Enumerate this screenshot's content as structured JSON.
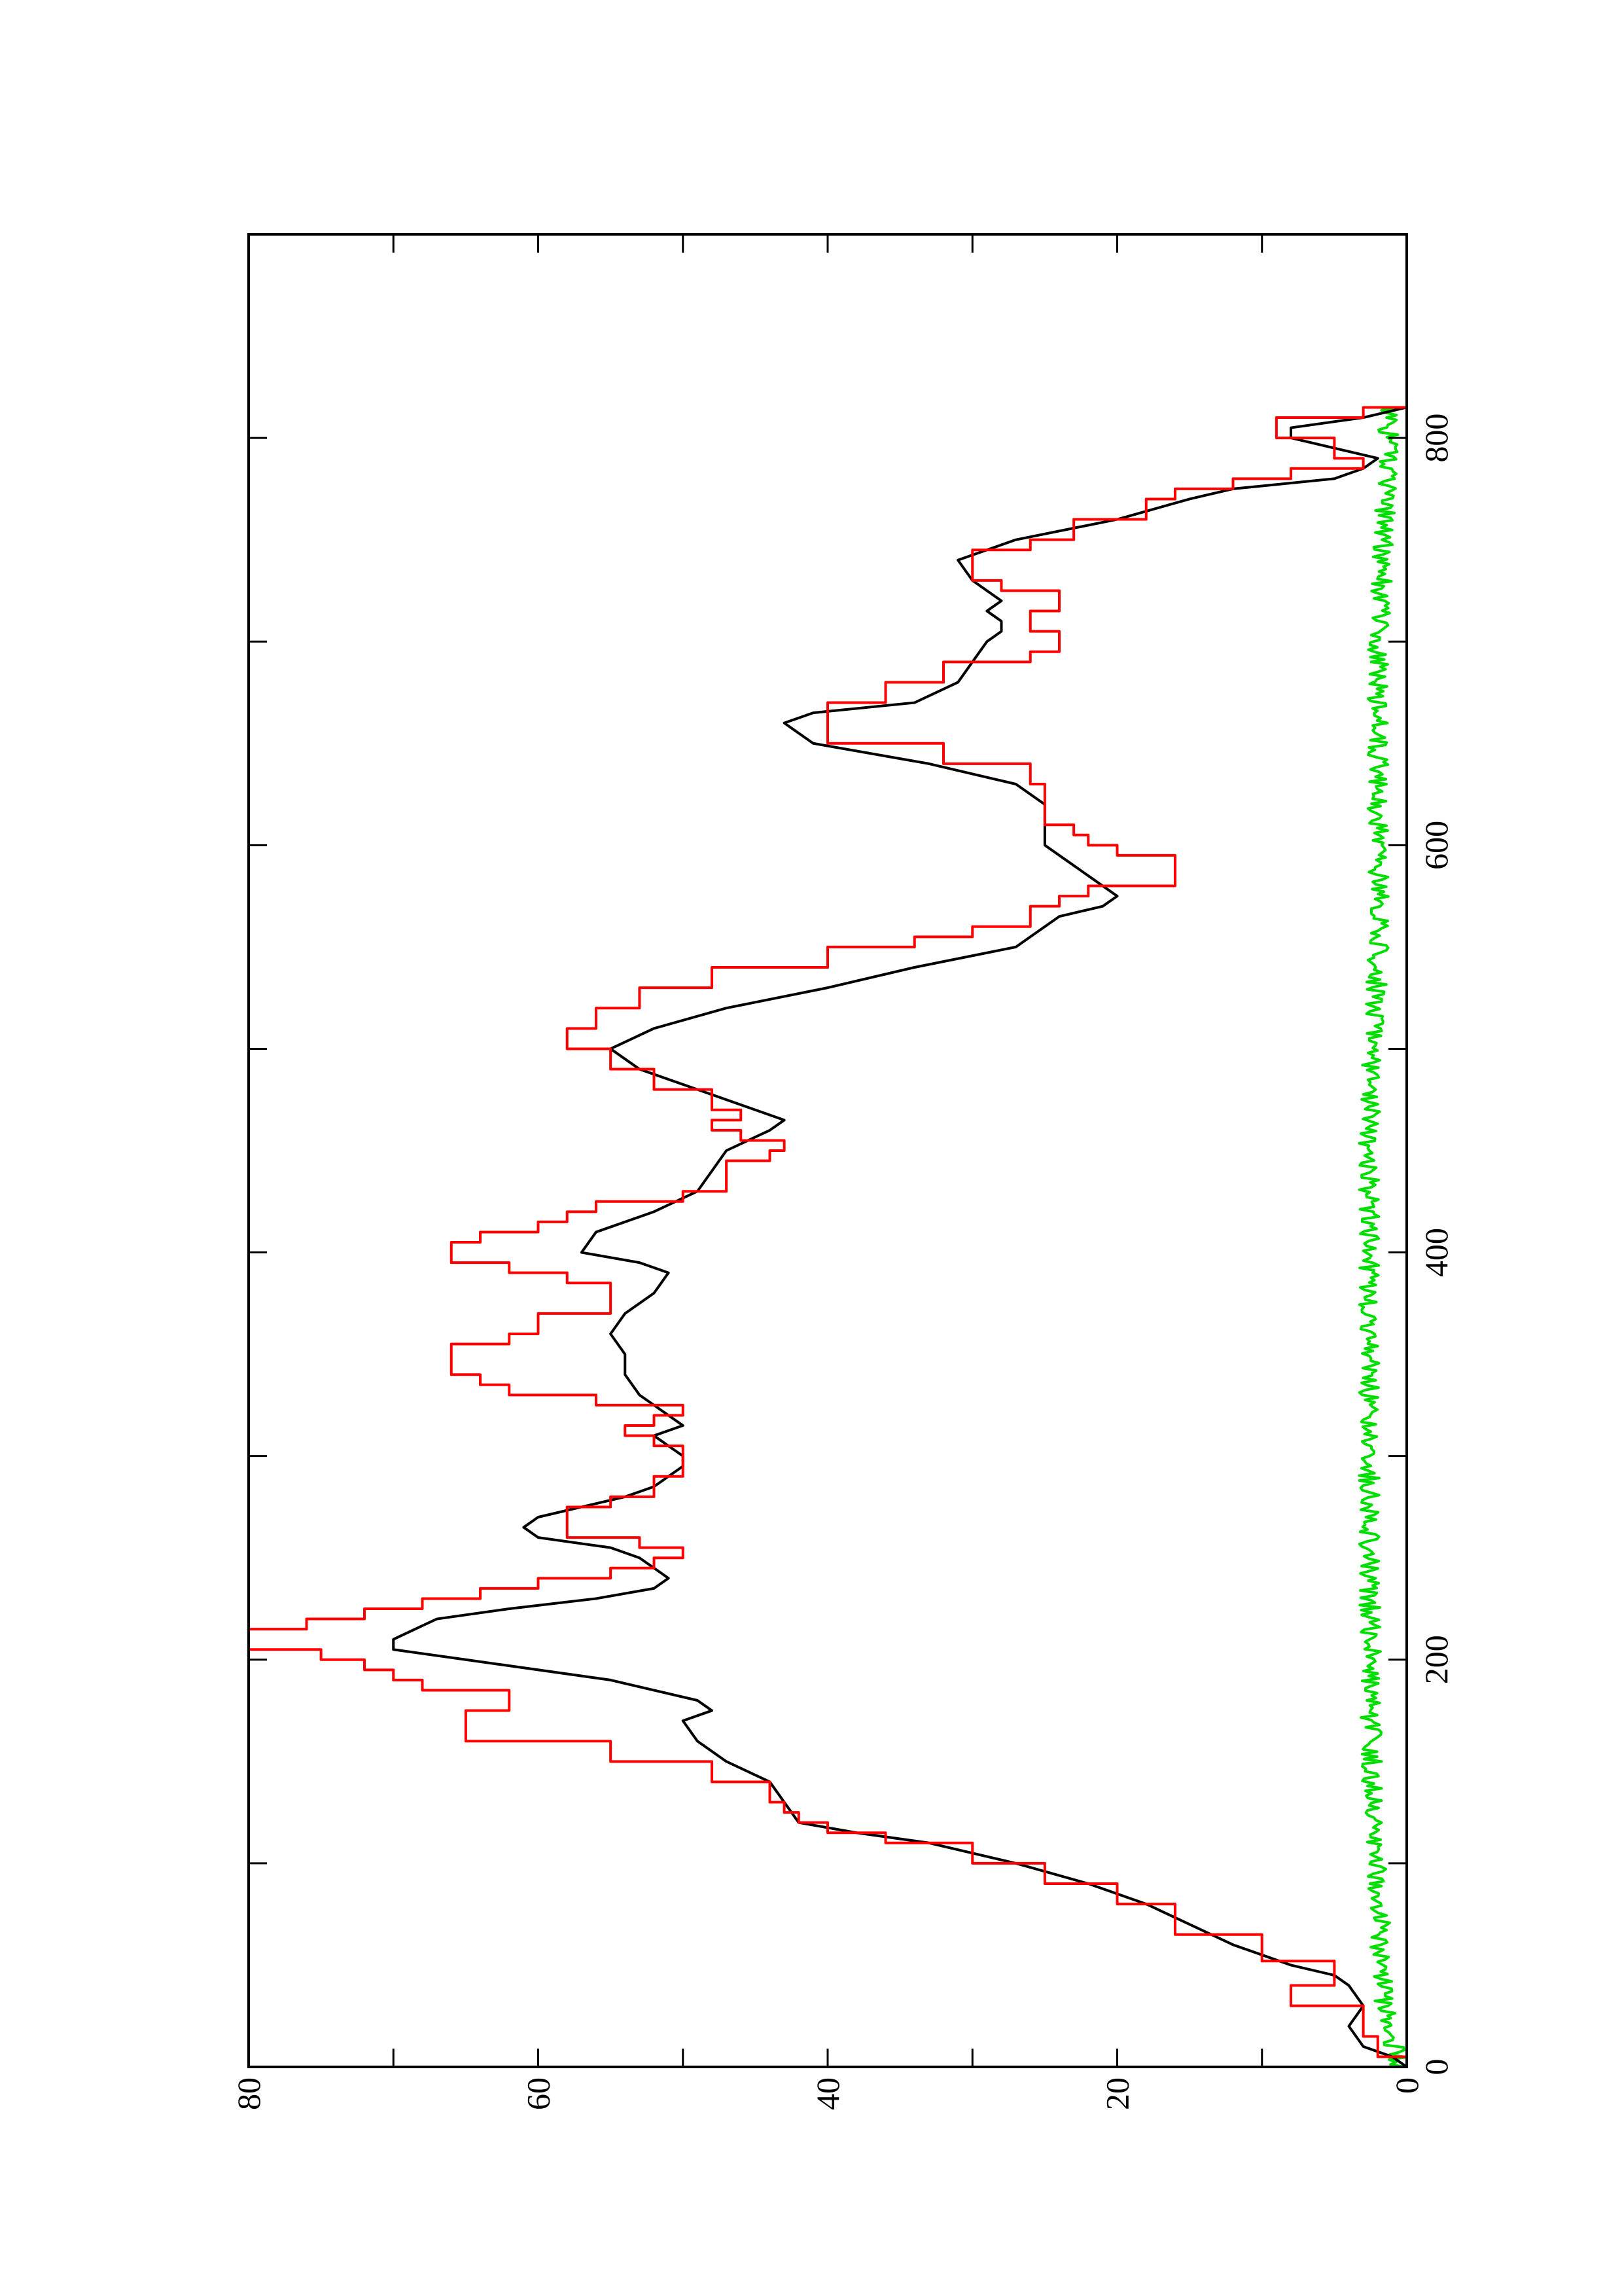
{
  "chart_data": {
    "type": "line",
    "orientation": "rotated-90-ccw",
    "title": "",
    "xlabel": "",
    "ylabel": "",
    "xlim": [
      0,
      900
    ],
    "ylim": [
      0,
      80
    ],
    "x_ticks": [
      0,
      200,
      400,
      600,
      800
    ],
    "x_minor_ticks": [
      100,
      300,
      500,
      700
    ],
    "y_ticks": [
      0,
      20,
      40,
      60,
      80
    ],
    "y_minor_ticks": [
      10,
      30,
      50,
      70
    ],
    "x_tick_labels": [
      "0",
      "200",
      "400",
      "600",
      "800"
    ],
    "y_tick_labels": [
      "0",
      "20",
      "40",
      "60",
      "80"
    ],
    "grid": false,
    "legend": "none",
    "series": [
      {
        "color": "#000000",
        "style": "smooth",
        "points": [
          [
            0,
            0
          ],
          [
            5,
            1
          ],
          [
            10,
            3
          ],
          [
            20,
            4
          ],
          [
            30,
            3
          ],
          [
            40,
            4
          ],
          [
            45,
            5
          ],
          [
            50,
            8
          ],
          [
            60,
            12
          ],
          [
            70,
            15
          ],
          [
            80,
            18
          ],
          [
            90,
            22
          ],
          [
            100,
            27
          ],
          [
            110,
            33
          ],
          [
            115,
            38
          ],
          [
            120,
            42
          ],
          [
            130,
            43
          ],
          [
            140,
            44
          ],
          [
            150,
            47
          ],
          [
            160,
            49
          ],
          [
            170,
            50
          ],
          [
            175,
            48
          ],
          [
            180,
            49
          ],
          [
            190,
            55
          ],
          [
            200,
            65
          ],
          [
            205,
            70
          ],
          [
            210,
            70
          ],
          [
            220,
            67
          ],
          [
            225,
            62
          ],
          [
            230,
            56
          ],
          [
            235,
            52
          ],
          [
            240,
            51
          ],
          [
            245,
            52
          ],
          [
            250,
            53
          ],
          [
            255,
            55
          ],
          [
            260,
            60
          ],
          [
            265,
            61
          ],
          [
            270,
            60
          ],
          [
            275,
            57
          ],
          [
            280,
            54
          ],
          [
            285,
            52
          ],
          [
            290,
            51
          ],
          [
            295,
            50
          ],
          [
            300,
            50
          ],
          [
            305,
            51
          ],
          [
            310,
            52
          ],
          [
            315,
            50
          ],
          [
            320,
            51
          ],
          [
            325,
            52
          ],
          [
            330,
            53
          ],
          [
            340,
            54
          ],
          [
            350,
            54
          ],
          [
            360,
            55
          ],
          [
            370,
            54
          ],
          [
            380,
            52
          ],
          [
            390,
            51
          ],
          [
            395,
            53
          ],
          [
            400,
            57
          ],
          [
            410,
            56
          ],
          [
            420,
            52
          ],
          [
            430,
            49
          ],
          [
            440,
            48
          ],
          [
            450,
            47
          ],
          [
            460,
            44
          ],
          [
            465,
            43
          ],
          [
            470,
            45
          ],
          [
            480,
            49
          ],
          [
            490,
            53
          ],
          [
            500,
            55
          ],
          [
            510,
            52
          ],
          [
            520,
            47
          ],
          [
            530,
            40
          ],
          [
            540,
            34
          ],
          [
            550,
            27
          ],
          [
            560,
            25
          ],
          [
            565,
            24
          ],
          [
            570,
            21
          ],
          [
            575,
            20
          ],
          [
            580,
            21
          ],
          [
            590,
            23
          ],
          [
            600,
            25
          ],
          [
            610,
            25
          ],
          [
            620,
            25
          ],
          [
            630,
            27
          ],
          [
            640,
            33
          ],
          [
            650,
            41
          ],
          [
            655,
            42
          ],
          [
            660,
            43
          ],
          [
            665,
            41
          ],
          [
            670,
            34
          ],
          [
            680,
            31
          ],
          [
            690,
            30
          ],
          [
            700,
            29
          ],
          [
            705,
            28
          ],
          [
            710,
            28
          ],
          [
            715,
            29
          ],
          [
            720,
            28
          ],
          [
            730,
            30
          ],
          [
            740,
            31
          ],
          [
            750,
            27
          ],
          [
            760,
            20
          ],
          [
            770,
            15
          ],
          [
            775,
            12
          ],
          [
            780,
            5
          ],
          [
            785,
            3
          ],
          [
            790,
            2
          ],
          [
            800,
            8
          ],
          [
            805,
            8
          ],
          [
            810,
            3
          ],
          [
            815,
            0
          ]
        ]
      },
      {
        "color": "#ff0000",
        "style": "steps",
        "points": [
          [
            0,
            0
          ],
          [
            5,
            2
          ],
          [
            10,
            2
          ],
          [
            15,
            3
          ],
          [
            25,
            3
          ],
          [
            30,
            8
          ],
          [
            35,
            8
          ],
          [
            40,
            5
          ],
          [
            48,
            5
          ],
          [
            52,
            10
          ],
          [
            60,
            10
          ],
          [
            65,
            16
          ],
          [
            75,
            16
          ],
          [
            80,
            20
          ],
          [
            90,
            25
          ],
          [
            100,
            30
          ],
          [
            110,
            36
          ],
          [
            115,
            40
          ],
          [
            120,
            42
          ],
          [
            125,
            43
          ],
          [
            130,
            44
          ],
          [
            140,
            48
          ],
          [
            150,
            55
          ],
          [
            160,
            65
          ],
          [
            170,
            65
          ],
          [
            175,
            62
          ],
          [
            180,
            62
          ],
          [
            185,
            68
          ],
          [
            190,
            70
          ],
          [
            195,
            72
          ],
          [
            200,
            75
          ],
          [
            205,
            80
          ],
          [
            210,
            80
          ],
          [
            215,
            76
          ],
          [
            220,
            72
          ],
          [
            225,
            68
          ],
          [
            230,
            64
          ],
          [
            235,
            60
          ],
          [
            240,
            55
          ],
          [
            245,
            52
          ],
          [
            250,
            50
          ],
          [
            255,
            53
          ],
          [
            260,
            58
          ],
          [
            270,
            58
          ],
          [
            275,
            55
          ],
          [
            280,
            52
          ],
          [
            290,
            50
          ],
          [
            300,
            50
          ],
          [
            305,
            52
          ],
          [
            310,
            54
          ],
          [
            315,
            52
          ],
          [
            320,
            50
          ],
          [
            325,
            56
          ],
          [
            330,
            62
          ],
          [
            335,
            64
          ],
          [
            340,
            66
          ],
          [
            350,
            66
          ],
          [
            355,
            62
          ],
          [
            360,
            60
          ],
          [
            365,
            60
          ],
          [
            370,
            55
          ],
          [
            380,
            55
          ],
          [
            385,
            58
          ],
          [
            390,
            62
          ],
          [
            395,
            66
          ],
          [
            400,
            66
          ],
          [
            405,
            64
          ],
          [
            410,
            60
          ],
          [
            415,
            58
          ],
          [
            420,
            56
          ],
          [
            425,
            50
          ],
          [
            430,
            47
          ],
          [
            440,
            47
          ],
          [
            445,
            44
          ],
          [
            450,
            43
          ],
          [
            455,
            46
          ],
          [
            460,
            48
          ],
          [
            465,
            46
          ],
          [
            470,
            48
          ],
          [
            480,
            52
          ],
          [
            490,
            55
          ],
          [
            500,
            58
          ],
          [
            510,
            56
          ],
          [
            520,
            53
          ],
          [
            530,
            48
          ],
          [
            540,
            40
          ],
          [
            550,
            34
          ],
          [
            555,
            30
          ],
          [
            560,
            26
          ],
          [
            570,
            24
          ],
          [
            575,
            22
          ],
          [
            580,
            16
          ],
          [
            590,
            16
          ],
          [
            595,
            20
          ],
          [
            600,
            22
          ],
          [
            605,
            23
          ],
          [
            610,
            25
          ],
          [
            620,
            25
          ],
          [
            630,
            26
          ],
          [
            640,
            32
          ],
          [
            650,
            40
          ],
          [
            660,
            40
          ],
          [
            670,
            36
          ],
          [
            680,
            32
          ],
          [
            690,
            26
          ],
          [
            695,
            24
          ],
          [
            700,
            24
          ],
          [
            705,
            26
          ],
          [
            710,
            26
          ],
          [
            715,
            24
          ],
          [
            720,
            24
          ],
          [
            725,
            28
          ],
          [
            730,
            30
          ],
          [
            740,
            30
          ],
          [
            745,
            26
          ],
          [
            750,
            23
          ],
          [
            760,
            18
          ],
          [
            770,
            16
          ],
          [
            775,
            12
          ],
          [
            780,
            8
          ],
          [
            785,
            3
          ],
          [
            790,
            5
          ],
          [
            800,
            9
          ],
          [
            805,
            9
          ],
          [
            810,
            3
          ],
          [
            815,
            0
          ]
        ]
      },
      {
        "color": "#00dd00",
        "style": "noise",
        "seed": 7,
        "points": [
          [
            0,
            0.5
          ],
          [
            30,
            1.5
          ],
          [
            60,
            1.8
          ],
          [
            90,
            2.0
          ],
          [
            120,
            2.3
          ],
          [
            150,
            2.4
          ],
          [
            180,
            2.5
          ],
          [
            210,
            2.5
          ],
          [
            240,
            2.6
          ],
          [
            270,
            2.6
          ],
          [
            300,
            2.6
          ],
          [
            330,
            2.6
          ],
          [
            360,
            2.6
          ],
          [
            390,
            2.6
          ],
          [
            420,
            2.6
          ],
          [
            450,
            2.6
          ],
          [
            480,
            2.5
          ],
          [
            510,
            2.3
          ],
          [
            540,
            2.0
          ],
          [
            570,
            1.8
          ],
          [
            600,
            2.0
          ],
          [
            630,
            2.0
          ],
          [
            660,
            2.0
          ],
          [
            690,
            2.0
          ],
          [
            720,
            1.8
          ],
          [
            750,
            1.6
          ],
          [
            780,
            1.4
          ],
          [
            810,
            1.2
          ],
          [
            815,
            1.0
          ]
        ],
        "amplitude": 0.7
      }
    ]
  }
}
